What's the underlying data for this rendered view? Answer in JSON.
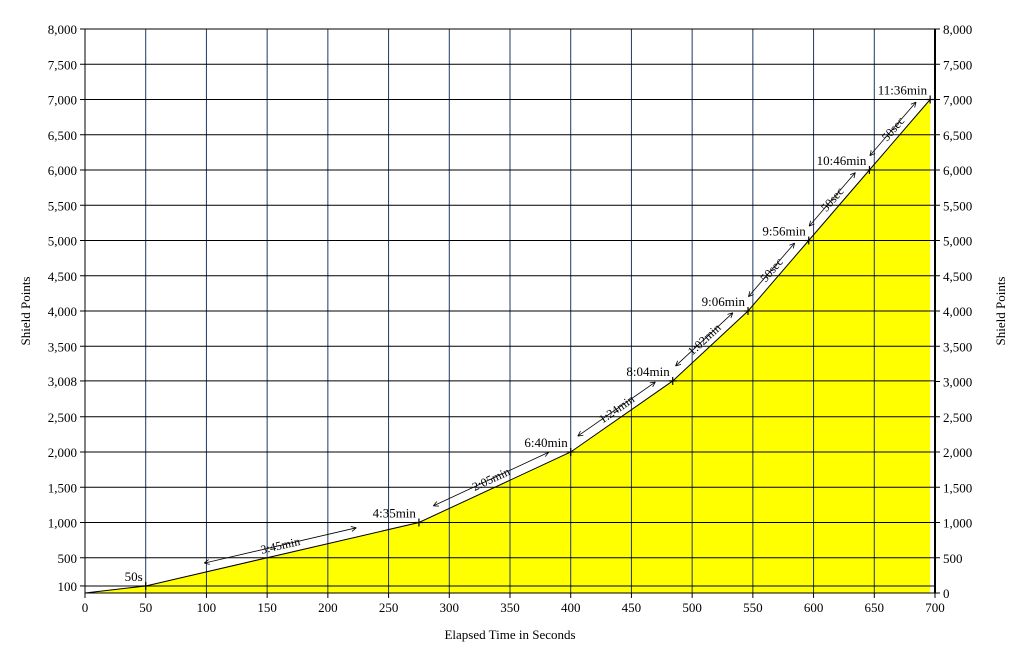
{
  "chart_data": {
    "type": "area",
    "xlabel": "Elapsed Time in Seconds",
    "ylabel": "Shield Points",
    "ylabel_right": "Shield Points",
    "xlim": [
      0,
      700
    ],
    "ylim": [
      0,
      8000
    ],
    "x_ticks": [
      0,
      50,
      100,
      150,
      200,
      250,
      300,
      350,
      400,
      450,
      500,
      550,
      600,
      650,
      700
    ],
    "x_tick_labels": [
      "0",
      "50",
      "100",
      "150",
      "200",
      "250",
      "300",
      "350",
      "400",
      "450",
      "500",
      "550",
      "600",
      "650",
      "700"
    ],
    "y_ticks_left": [
      100,
      500,
      1000,
      1500,
      2000,
      2500,
      3008,
      3500,
      4000,
      4500,
      5000,
      5500,
      6000,
      6500,
      7000,
      7500,
      8000
    ],
    "y_tick_labels_left": [
      "100",
      "500",
      "1,000",
      "1,500",
      "2,000",
      "2,500",
      "3,008",
      "3,500",
      "4,000",
      "4,500",
      "5,000",
      "5,500",
      "6,000",
      "6,500",
      "7,000",
      "7,500",
      "8,000"
    ],
    "y_ticks_right": [
      0,
      500,
      1000,
      1500,
      2000,
      2500,
      3000,
      3500,
      4000,
      4500,
      5000,
      5500,
      6000,
      6500,
      7000,
      7500,
      8000
    ],
    "y_tick_labels_right": [
      "0",
      "500",
      "1,000",
      "1,500",
      "2,000",
      "2,500",
      "3,000",
      "3,500",
      "4,000",
      "4,500",
      "5,000",
      "5,500",
      "6,000",
      "6,500",
      "7,000",
      "7,500",
      "8,000"
    ],
    "grid": true,
    "fill_color": "#ffff00",
    "series": [
      {
        "x": [
          0,
          50,
          275,
          400,
          484,
          546,
          596,
          646,
          696
        ],
        "y": [
          0,
          100,
          1000,
          2000,
          3008,
          4000,
          5000,
          6000,
          7000
        ]
      }
    ],
    "point_labels": [
      {
        "x": 50,
        "y": 100,
        "text": "50s"
      },
      {
        "x": 275,
        "y": 1000,
        "text": "4:35min"
      },
      {
        "x": 400,
        "y": 2000,
        "text": "6:40min"
      },
      {
        "x": 484,
        "y": 3008,
        "text": "8:04min"
      },
      {
        "x": 546,
        "y": 4000,
        "text": "9:06min"
      },
      {
        "x": 596,
        "y": 5000,
        "text": "9:56min"
      },
      {
        "x": 646,
        "y": 6000,
        "text": "10:46min"
      },
      {
        "x": 696,
        "y": 7000,
        "text": "11:36min"
      }
    ],
    "segment_labels": [
      {
        "from": 50,
        "to": 275,
        "text": "3:45min"
      },
      {
        "from": 275,
        "to": 400,
        "text": "2:05min"
      },
      {
        "from": 400,
        "to": 484,
        "text": "1:24min"
      },
      {
        "from": 484,
        "to": 546,
        "text": "1:02min"
      },
      {
        "from": 546,
        "to": 596,
        "text": "50sec"
      },
      {
        "from": 596,
        "to": 646,
        "text": "50sec"
      },
      {
        "from": 646,
        "to": 696,
        "text": "50sec"
      }
    ]
  }
}
